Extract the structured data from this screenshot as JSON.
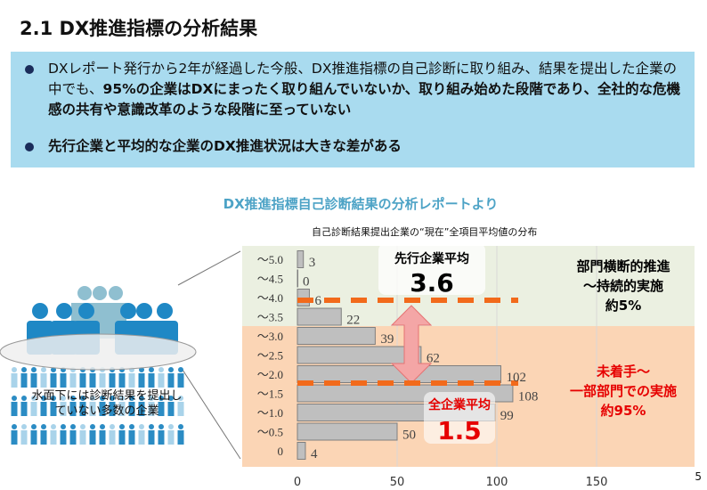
{
  "title": "2.1 DX推進指標の分析結果",
  "bullets": [
    {
      "pre": "DXレポート発行から2年が経過した今般、DX推進指標の自己診断に取り組み、結果を提出した企業の中でも、",
      "bold": "95%の企業はDXにまったく取り組んでいないか、取り組み始めた段階であり、全社的な危機感の共有や意識改革のような段階に至っていない"
    },
    {
      "pre": "",
      "bold": "先行企業と平均的な企業のDX推進状況は大きな差がある"
    }
  ],
  "subtitle": "DX推進指標自己診断結果の分析レポートより",
  "illustration_note": "水面下には診断結果を提出していない多数の企業",
  "page_number": "5",
  "chart_data": {
    "type": "bar",
    "orientation": "horizontal",
    "title": "自己診断結果提出企業の“現在”全項目平均値の分布",
    "categories": [
      "〜5.0",
      "〜4.5",
      "〜4.0",
      "〜3.5",
      "〜3.0",
      "〜2.5",
      "〜2.0",
      "〜1.5",
      "〜1.0",
      "〜0.5",
      "0"
    ],
    "values": [
      3,
      0,
      6,
      22,
      39,
      62,
      102,
      108,
      99,
      50,
      4
    ],
    "xlim": [
      0,
      150
    ],
    "xticks": [
      "0",
      "50",
      "100",
      "150"
    ],
    "grid": true,
    "colors": {
      "bar": "#bfbfbf",
      "upper_band": "#ebf0e1",
      "lower_band": "#fbd5b5",
      "dash": "#f26a1b",
      "arrow": "#f4a6a6"
    },
    "annotations": {
      "leader_label": "先行企業平均",
      "leader_value": "3.6",
      "average_label": "全企業平均",
      "average_value": "1.5",
      "upper_region": [
        "部門横断的推進",
        "〜持続的実施",
        "約5%"
      ],
      "lower_region": [
        "未着手〜",
        "一部部門での実施",
        "約95%"
      ]
    }
  }
}
